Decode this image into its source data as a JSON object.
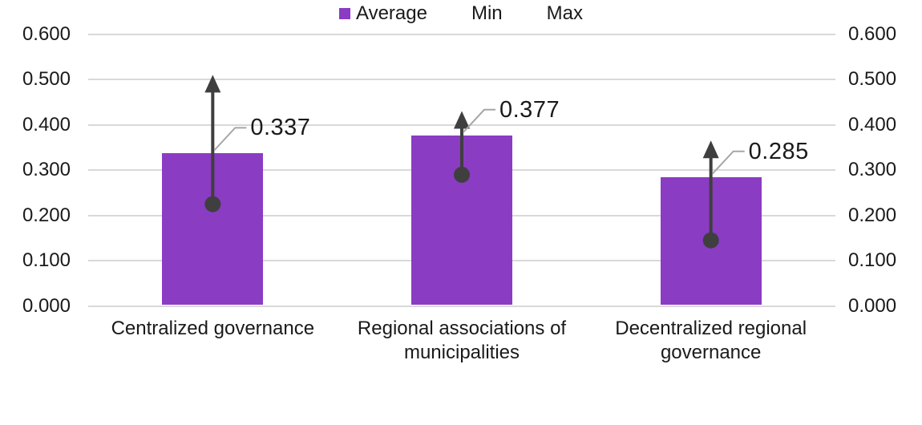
{
  "chart_data": {
    "type": "bar",
    "title": "",
    "categories": [
      "Centralized governance",
      "Regional associations of\nmunicipalities",
      "Decentralized regional\ngovernance"
    ],
    "series": [
      {
        "name": "Average",
        "values": [
          0.337,
          0.377,
          0.285
        ]
      },
      {
        "name": "Min",
        "values": [
          0.225,
          0.29,
          0.145
        ],
        "estimated_from_markers": true
      },
      {
        "name": "Max",
        "values": [
          0.5,
          0.42,
          0.355
        ],
        "estimated_from_markers": true
      }
    ],
    "data_labels": [
      "0.337",
      "0.377",
      "0.285"
    ],
    "y_axis": {
      "min": 0,
      "max": 0.6,
      "tick_step": 0.1,
      "ticks": [
        "0.000",
        "0.100",
        "0.200",
        "0.300",
        "0.400",
        "0.500",
        "0.600"
      ],
      "sides": [
        "left",
        "right"
      ]
    },
    "x_axis_label": "",
    "y_axis_label": "",
    "grid": true,
    "legend": {
      "position": "bottom",
      "entries": [
        {
          "label": "Average",
          "marker": "square"
        },
        {
          "label": "Min",
          "marker": "none"
        },
        {
          "label": "Max",
          "marker": "none"
        }
      ]
    },
    "annotations": {
      "min_marker": "filled-dot",
      "max_marker": "up-arrow"
    },
    "colors": {
      "bar": "#8a3cc3",
      "error_marker": "#3f3f3f",
      "leader_line": "#a6a6a6",
      "gridline": "#d9d9d9",
      "text": "#1a1a1a"
    }
  }
}
